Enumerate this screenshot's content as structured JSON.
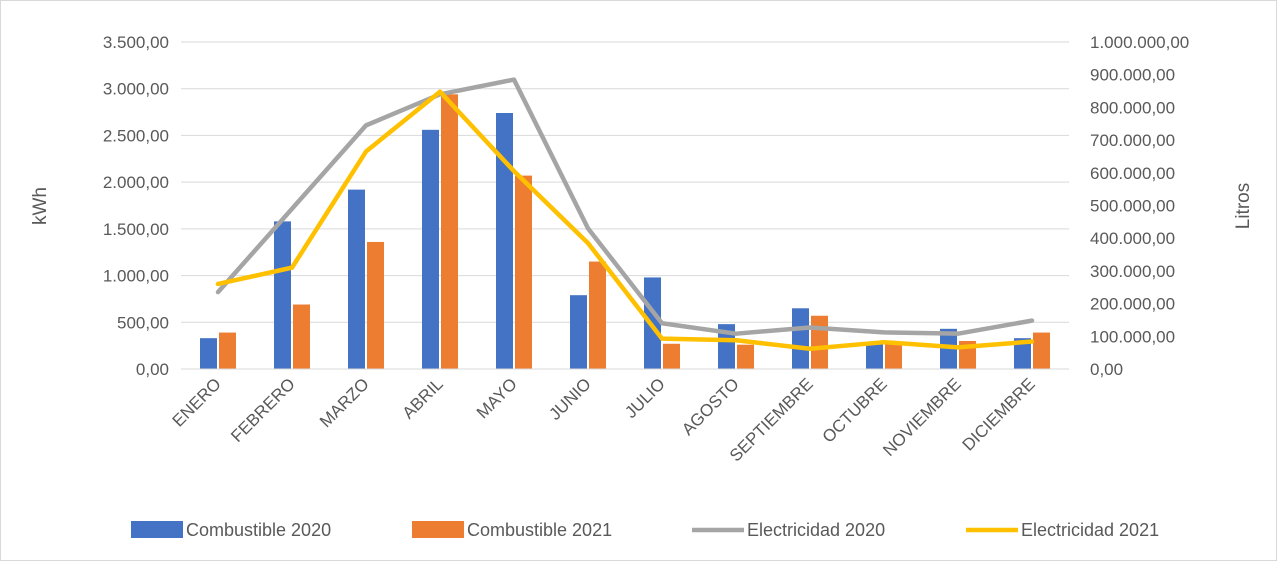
{
  "chart_data": {
    "type": "bar",
    "title": "",
    "categories": [
      "ENERO",
      "FEBRERO",
      "MARZO",
      "ABRIL",
      "MAYO",
      "JUNIO",
      "JULIO",
      "AGOSTO",
      "SEPTIEMBRE",
      "OCTUBRE",
      "NOVIEMBRE",
      "DICIEMBRE"
    ],
    "ylabel": "kWh",
    "y2label": "Litros",
    "ylim": [
      0,
      3500
    ],
    "y2lim": [
      0,
      1000000
    ],
    "yticks": [
      "0,00",
      "500,00",
      "1.000,00",
      "1.500,00",
      "2.000,00",
      "2.500,00",
      "3.000,00",
      "3.500,00"
    ],
    "y2ticks": [
      "0,00",
      "100.000,00",
      "200.000,00",
      "300.000,00",
      "400.000,00",
      "500.000,00",
      "600.000,00",
      "700.000,00",
      "800.000,00",
      "900.000,00",
      "1.000.000,00"
    ],
    "grid": true,
    "legend_position": "bottom",
    "series": [
      {
        "name": "Combustible 2020",
        "kind": "bar",
        "axis": "left",
        "color": "#4472C4",
        "values": [
          330,
          1580,
          1920,
          2560,
          2740,
          790,
          980,
          480,
          650,
          270,
          430,
          330
        ]
      },
      {
        "name": "Combustible 2021",
        "kind": "bar",
        "axis": "left",
        "color": "#ED7D31",
        "values": [
          390,
          690,
          1360,
          2940,
          2070,
          1150,
          270,
          260,
          570,
          270,
          300,
          390
        ]
      },
      {
        "name": "Electricidad 2020",
        "kind": "line",
        "axis": "right",
        "color": "#A5A5A5",
        "values": [
          235000,
          490000,
          745000,
          840000,
          885000,
          430000,
          140000,
          108000,
          127000,
          112000,
          108000,
          148000
        ]
      },
      {
        "name": "Electricidad 2021",
        "kind": "line",
        "axis": "right",
        "color": "#FFC000",
        "values": [
          260000,
          310000,
          665000,
          848000,
          605000,
          385000,
          93000,
          88000,
          62000,
          82000,
          66000,
          84000
        ]
      }
    ]
  }
}
